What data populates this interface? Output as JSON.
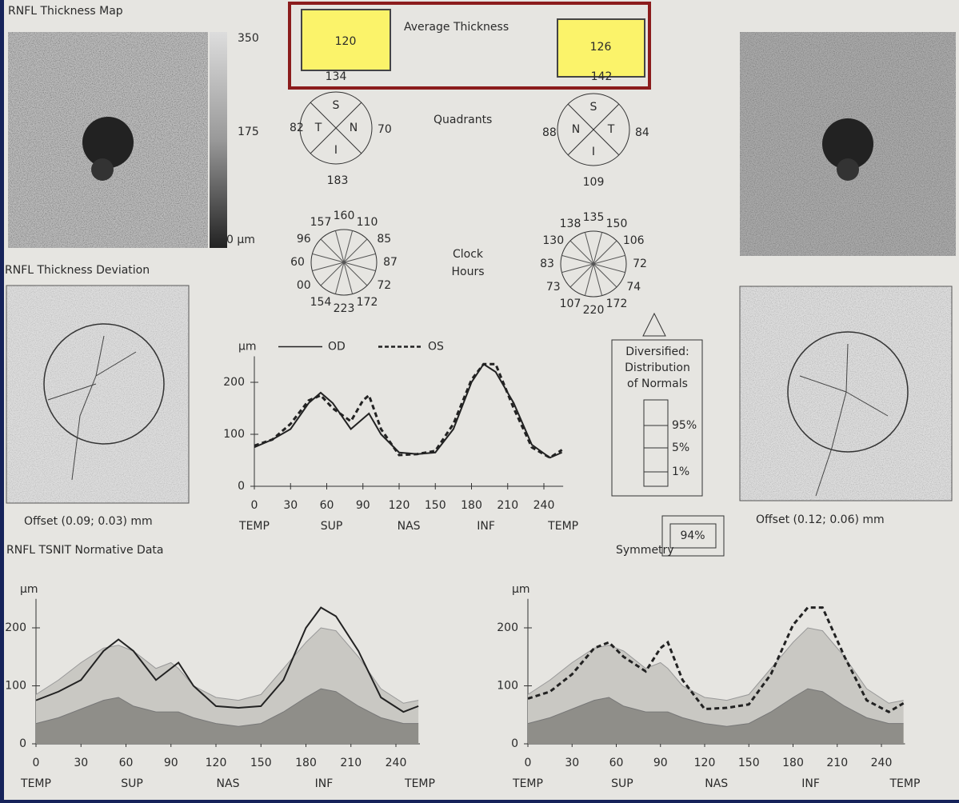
{
  "header": {
    "map_title": "RNFL Thickness Map",
    "scale_labels": [
      "350",
      "175",
      "0 µm"
    ],
    "average_label": "Average Thickness",
    "od_average_under": "134",
    "os_average_under": "142",
    "od_highlight": "120",
    "os_highlight": "126"
  },
  "quadrants": {
    "label": "Quadrants",
    "od": {
      "letters": [
        "S",
        "T",
        "N",
        "I"
      ],
      "temporal": "82",
      "nasal": "70",
      "inferior": "183"
    },
    "os": {
      "letters": [
        "S",
        "N",
        "T",
        "I"
      ],
      "nasal": "88",
      "temporal": "84",
      "inferior": "109"
    }
  },
  "clock_hours": {
    "label_lines": [
      "Clock",
      "Hours"
    ],
    "od": [
      "160",
      "110",
      "85",
      "87",
      "72",
      "172",
      "223",
      "154",
      "00",
      "60",
      "96",
      "157"
    ],
    "os": [
      "135",
      "150",
      "106",
      "72",
      "74",
      "172",
      "220",
      "107",
      "73",
      "83",
      "130",
      "138"
    ]
  },
  "deviation": {
    "title": "RNFL Thickness Deviation",
    "od_offset": "Offset (0.09; 0.03) mm",
    "os_offset": "Offset (0.12; 0.06) mm"
  },
  "diversified": {
    "title_lines": [
      "Diversified:",
      "Distribution",
      "of Normals"
    ],
    "levels": [
      "95%",
      "5%",
      "1%"
    ]
  },
  "symmetry": {
    "label": "Symmetry",
    "value": "94%"
  },
  "normative_title": "RNFL TSNIT Normative Data",
  "chart_data": [
    {
      "type": "line",
      "unit_label": "µm",
      "x": [
        0,
        15,
        30,
        45,
        55,
        65,
        80,
        90,
        95,
        105,
        120,
        135,
        150,
        165,
        180,
        190,
        200,
        215,
        230,
        245,
        255
      ],
      "xlim": [
        0,
        256
      ],
      "xticks": [
        0,
        30,
        60,
        90,
        120,
        150,
        180,
        210,
        240
      ],
      "ylim": [
        0,
        250
      ],
      "yticks": [
        0,
        100,
        200
      ],
      "regions": [
        "TEMP",
        "SUP",
        "NAS",
        "INF",
        "TEMP"
      ],
      "series": [
        {
          "name": "OD",
          "dashed": false,
          "values": [
            75,
            90,
            110,
            160,
            180,
            160,
            110,
            130,
            140,
            100,
            65,
            62,
            65,
            110,
            200,
            235,
            220,
            160,
            80,
            55,
            65
          ]
        },
        {
          "name": "OS",
          "dashed": true,
          "values": [
            78,
            90,
            120,
            165,
            175,
            150,
            125,
            165,
            175,
            110,
            60,
            62,
            68,
            120,
            205,
            235,
            235,
            150,
            75,
            55,
            70
          ]
        }
      ]
    },
    {
      "type": "line",
      "unit_label": "µm",
      "x": [
        0,
        15,
        30,
        45,
        55,
        65,
        80,
        90,
        95,
        105,
        120,
        135,
        150,
        165,
        180,
        190,
        200,
        215,
        230,
        245,
        255
      ],
      "xlim": [
        0,
        256
      ],
      "xticks": [
        0,
        30,
        60,
        90,
        120,
        150,
        180,
        210,
        240
      ],
      "ylim": [
        0,
        250
      ],
      "yticks": [
        0,
        100,
        200
      ],
      "regions": [
        "TEMP",
        "SUP",
        "NAS",
        "INF",
        "TEMP"
      ],
      "bands": {
        "upper": [
          85,
          110,
          140,
          165,
          170,
          160,
          130,
          140,
          130,
          100,
          80,
          75,
          85,
          130,
          175,
          200,
          195,
          150,
          95,
          70,
          75
        ],
        "lower": [
          35,
          45,
          60,
          75,
          80,
          65,
          55,
          55,
          55,
          45,
          35,
          30,
          35,
          55,
          80,
          95,
          90,
          65,
          45,
          35,
          35
        ]
      },
      "series": [
        {
          "dashed": false,
          "values": [
            75,
            90,
            110,
            160,
            180,
            160,
            110,
            130,
            140,
            100,
            65,
            62,
            65,
            110,
            200,
            235,
            220,
            160,
            80,
            55,
            65
          ]
        }
      ]
    },
    {
      "type": "line",
      "unit_label": "µm",
      "x": [
        0,
        15,
        30,
        45,
        55,
        65,
        80,
        90,
        95,
        105,
        120,
        135,
        150,
        165,
        180,
        190,
        200,
        215,
        230,
        245,
        255
      ],
      "xlim": [
        0,
        256
      ],
      "xticks": [
        0,
        30,
        60,
        90,
        120,
        150,
        180,
        210,
        240
      ],
      "ylim": [
        0,
        250
      ],
      "yticks": [
        0,
        100,
        200
      ],
      "regions": [
        "TEMP",
        "SUP",
        "NAS",
        "INF",
        "TEMP"
      ],
      "bands": {
        "upper": [
          85,
          110,
          140,
          165,
          170,
          160,
          130,
          140,
          130,
          100,
          80,
          75,
          85,
          130,
          175,
          200,
          195,
          150,
          95,
          70,
          75
        ],
        "lower": [
          35,
          45,
          60,
          75,
          80,
          65,
          55,
          55,
          55,
          45,
          35,
          30,
          35,
          55,
          80,
          95,
          90,
          65,
          45,
          35,
          35
        ]
      },
      "series": [
        {
          "dashed": true,
          "values": [
            78,
            90,
            120,
            165,
            175,
            150,
            125,
            165,
            175,
            110,
            60,
            62,
            68,
            120,
            205,
            235,
            235,
            150,
            75,
            55,
            70
          ]
        }
      ]
    }
  ]
}
